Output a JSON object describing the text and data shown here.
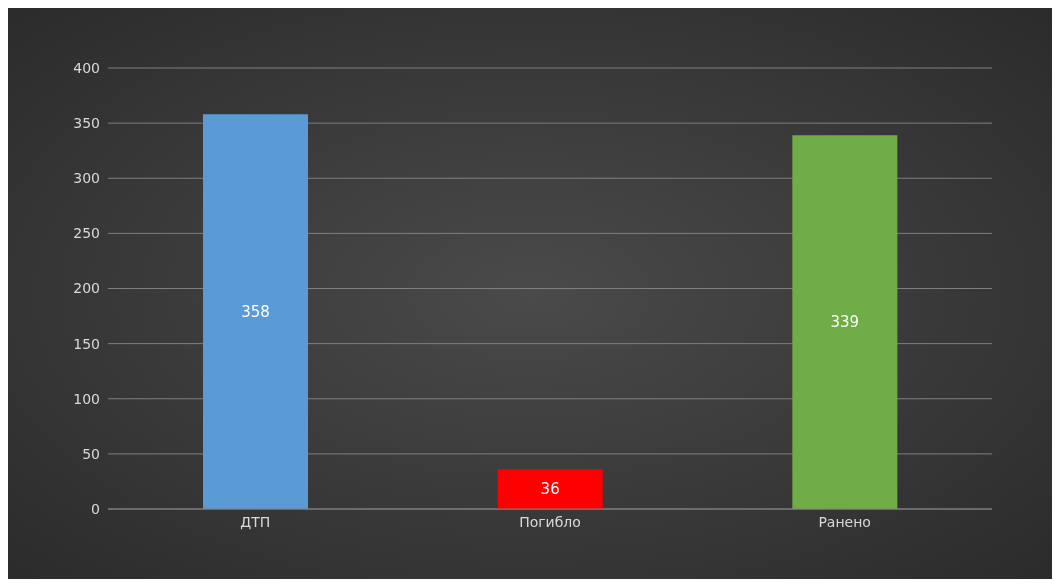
{
  "chart_data": {
    "type": "bar",
    "categories": [
      "ДТП",
      "Погибло",
      "Ранено"
    ],
    "values": [
      358,
      36,
      339
    ],
    "colors": [
      "#5b9bd5",
      "#ff0000",
      "#70ad47"
    ],
    "ylim": [
      0,
      400
    ],
    "yticks": [
      0,
      50,
      100,
      150,
      200,
      250,
      300,
      350,
      400
    ],
    "grid": "y",
    "data_labels": true
  }
}
